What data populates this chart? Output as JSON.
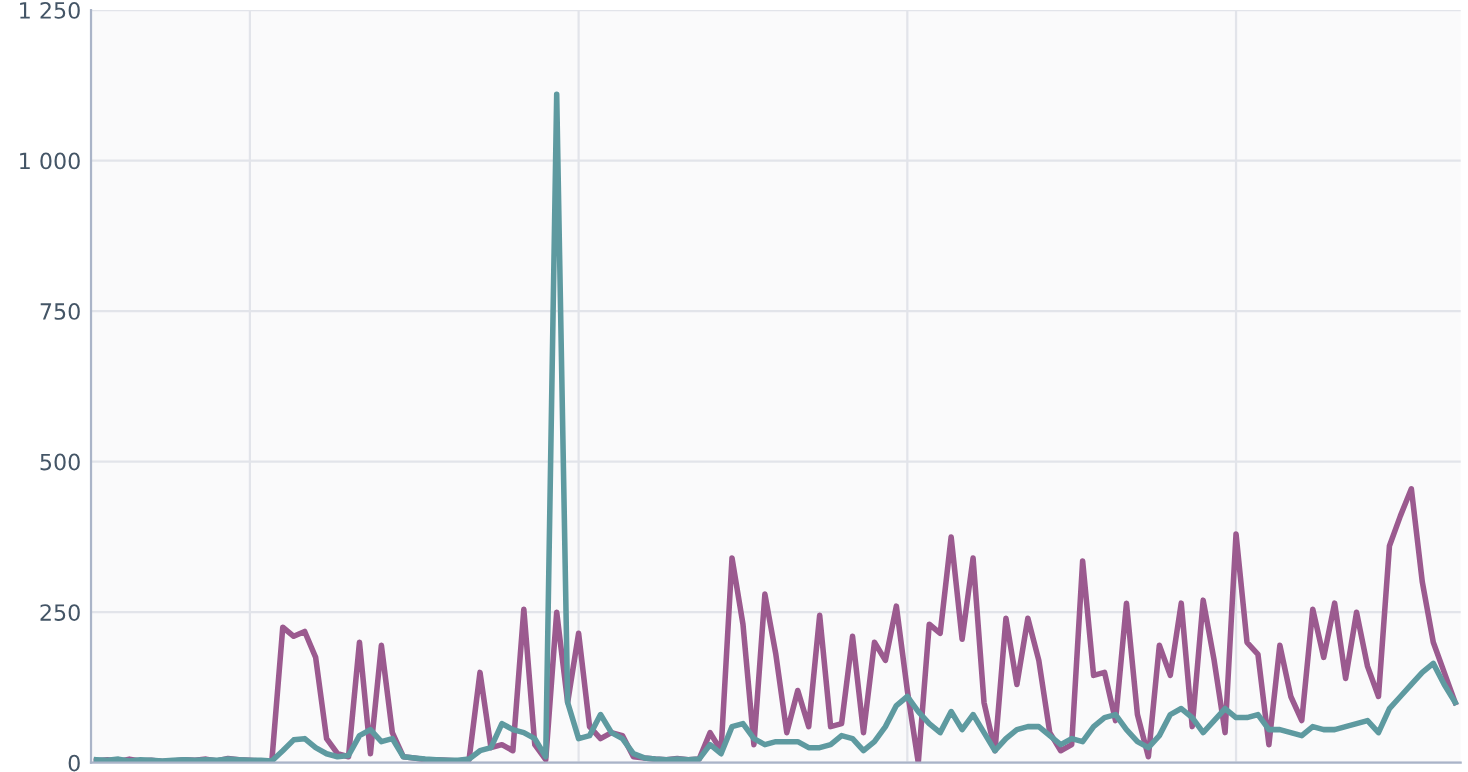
{
  "chart_data": {
    "type": "line",
    "categories": [
      null,
      null,
      null,
      null,
      null,
      null,
      null,
      null,
      null,
      null,
      null,
      null,
      null,
      null,
      null,
      null,
      null,
      null,
      null,
      null,
      null,
      null,
      null,
      null,
      null,
      null,
      null,
      null,
      null,
      null,
      null,
      null,
      null,
      null,
      null,
      null,
      null,
      null,
      null,
      null,
      null,
      null,
      null,
      null,
      null,
      null,
      null,
      null,
      null,
      null,
      null,
      null,
      null,
      null,
      null,
      null,
      null,
      null,
      null,
      null,
      null,
      null,
      null,
      null,
      null,
      null,
      null,
      null,
      null,
      null,
      null,
      null,
      null,
      null,
      null,
      null,
      null,
      null,
      null,
      null,
      null,
      null,
      null,
      null,
      null,
      null,
      null,
      null,
      null,
      null,
      null,
      null,
      null,
      null,
      null,
      null,
      null,
      null,
      null,
      null,
      null,
      null,
      null,
      null,
      null,
      null,
      null,
      null,
      null,
      null,
      null,
      null,
      null,
      null,
      null,
      null,
      null,
      null,
      null,
      null,
      null,
      null,
      null,
      null,
      null
    ],
    "series": [
      {
        "color": "#9b5a8f",
        "values": [
          3,
          5,
          2,
          6,
          3,
          4,
          2,
          3,
          5,
          4,
          6,
          3,
          7,
          5,
          4,
          3,
          2,
          225,
          210,
          218,
          175,
          40,
          15,
          10,
          200,
          15,
          195,
          50,
          10,
          8,
          5,
          5,
          4,
          3,
          5,
          150,
          25,
          30,
          20,
          255,
          30,
          5,
          250,
          100,
          215,
          60,
          40,
          50,
          45,
          10,
          8,
          6,
          5,
          7,
          5,
          6,
          50,
          20,
          340,
          230,
          30,
          280,
          180,
          50,
          120,
          60,
          245,
          60,
          65,
          210,
          50,
          200,
          170,
          260,
          120,
          0,
          230,
          215,
          375,
          205,
          340,
          100,
          20,
          240,
          130,
          240,
          170,
          50,
          20,
          30,
          335,
          145,
          150,
          70,
          265,
          80,
          10,
          195,
          145,
          265,
          60,
          270,
          170,
          50,
          380,
          200,
          180,
          30,
          195,
          110,
          70,
          255,
          175,
          265,
          140,
          250,
          160,
          110,
          360,
          410,
          455,
          300,
          200,
          150,
          100
        ]
      },
      {
        "color": "#5e9aa0",
        "values": [
          5,
          4,
          6,
          3,
          5,
          4,
          3,
          4,
          5,
          4,
          5,
          4,
          6,
          5,
          4,
          4,
          3,
          20,
          38,
          40,
          25,
          15,
          10,
          12,
          45,
          55,
          35,
          40,
          10,
          8,
          6,
          5,
          4,
          4,
          6,
          20,
          25,
          65,
          55,
          50,
          40,
          10,
          1110,
          100,
          40,
          45,
          80,
          50,
          40,
          15,
          8,
          6,
          5,
          6,
          5,
          6,
          30,
          15,
          60,
          65,
          40,
          30,
          35,
          35,
          35,
          25,
          25,
          30,
          45,
          40,
          20,
          35,
          60,
          95,
          110,
          85,
          65,
          50,
          85,
          55,
          80,
          50,
          20,
          40,
          55,
          60,
          60,
          45,
          30,
          40,
          35,
          60,
          75,
          80,
          55,
          35,
          25,
          45,
          80,
          90,
          75,
          50,
          70,
          90,
          75,
          75,
          80,
          55,
          55,
          50,
          45,
          60,
          55,
          55,
          60,
          65,
          70,
          50,
          90,
          110,
          130,
          150,
          165,
          130,
          100
        ]
      }
    ],
    "ylim": [
      0,
      1250
    ],
    "yticks": [
      0,
      250,
      500,
      750,
      1000,
      {
        "value": 1250,
        "label": "1 250"
      }
    ],
    "grid": true
  }
}
